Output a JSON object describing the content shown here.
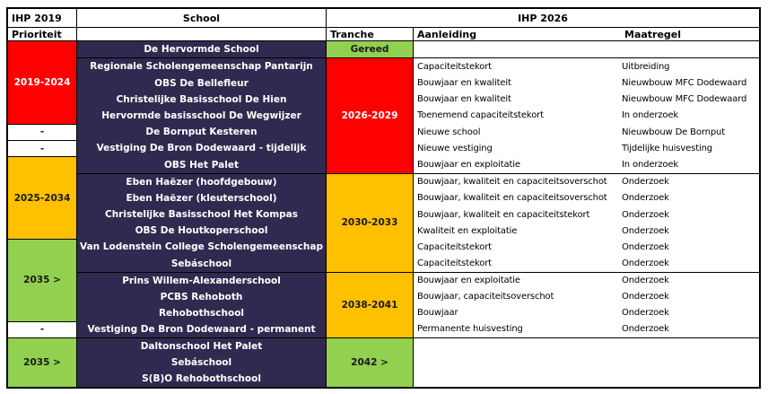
{
  "title": "IHP schoolhuisvesting planningstabel",
  "colors": {
    "red": "#FF0000",
    "orange": "#FFC000",
    "green": "#92D050",
    "navy": "#302A50",
    "white": "#FFFFFF",
    "border": "#000000",
    "text_on_red": "#FFFFFF",
    "text_dark": "#1A1A1A",
    "school_text": "#FFFFFF"
  },
  "header": {
    "ihp2019": "IHP 2019",
    "school": "School",
    "ihp2026": "IHP 2026",
    "prioriteit": "Prioriteit",
    "tranche": "Tranche",
    "aanleiding": "Aanleiding",
    "maatregel": "Maatregel"
  },
  "priority_groups": [
    {
      "label": "2019-2024",
      "rows": 5,
      "color": "red"
    },
    {
      "label": "-",
      "rows": 1,
      "color": "white"
    },
    {
      "label": "-",
      "rows": 1,
      "color": "white"
    },
    {
      "label": "2025-2034",
      "rows": 5,
      "color": "orange"
    },
    {
      "label": "2035 >",
      "rows": 5,
      "color": "green"
    },
    {
      "label": "-",
      "rows": 1,
      "color": "white"
    },
    {
      "label": "2035 >",
      "rows": 3,
      "color": "green"
    }
  ],
  "tranche_groups": [
    {
      "tranche": "Gereed",
      "color": "green",
      "rows": [
        {
          "school": "De Hervormde School",
          "aanleiding": "",
          "maatregel": ""
        }
      ]
    },
    {
      "tranche": "2026-2029",
      "color": "red",
      "rows": [
        {
          "school": "Regionale Scholengemeenschap Pantarijn",
          "aanleiding": "Capaciteitstekort",
          "maatregel": "Uitbreiding"
        },
        {
          "school": "OBS De Bellefleur",
          "aanleiding": "Bouwjaar en kwaliteit",
          "maatregel": "Nieuwbouw MFC Dodewaard"
        },
        {
          "school": "Christelijke Basisschool De Hien",
          "aanleiding": "Bouwjaar en kwaliteit",
          "maatregel": "Nieuwbouw MFC Dodewaard"
        },
        {
          "school": "Hervormde basisschool De Wegwijzer",
          "aanleiding": "Toenemend capaciteitstekort",
          "maatregel": "In onderzoek"
        },
        {
          "school": "De Bornput Kesteren",
          "aanleiding": "Nieuwe school",
          "maatregel": "Nieuwbouw De Bornput"
        },
        {
          "school": "Vestiging De Bron Dodewaard - tijdelijk",
          "aanleiding": "Nieuwe vestiging",
          "maatregel": "Tijdelijke huisvesting"
        },
        {
          "school": "OBS Het Palet",
          "aanleiding": "Bouwjaar en exploitatie",
          "maatregel": "In onderzoek"
        }
      ]
    },
    {
      "tranche": "2030-2033",
      "color": "orange",
      "rows": [
        {
          "school": "Eben Haëzer (hoofdgebouw)",
          "aanleiding": "Bouwjaar, kwaliteit en capaciteitsoverschot",
          "maatregel": "Onderzoek"
        },
        {
          "school": "Eben Haëzer (kleuterschool)",
          "aanleiding": "Bouwjaar, kwaliteit en capaciteitsoverschot",
          "maatregel": "Onderzoek"
        },
        {
          "school": "Christelijke Basisschool Het Kompas",
          "aanleiding": "Bouwjaar, kwaliteit en capaciteitstekort",
          "maatregel": "Onderzoek"
        },
        {
          "school": "OBS De Houtkoperschool",
          "aanleiding": "Kwaliteit en exploitatie",
          "maatregel": "Onderzoek"
        },
        {
          "school": "Van Lodenstein College Scholengemeenschap",
          "aanleiding": "Capaciteitstekort",
          "maatregel": "Onderzoek"
        },
        {
          "school": "Sebáschool",
          "aanleiding": "Capaciteitstekort",
          "maatregel": "Onderzoek"
        }
      ]
    },
    {
      "tranche": "2038-2041",
      "color": "orange",
      "rows": [
        {
          "school": "Prins Willem-Alexanderschool",
          "aanleiding": "Bouwjaar en exploitatie",
          "maatregel": "Onderzoek"
        },
        {
          "school": "PCBS Rehoboth",
          "aanleiding": "Bouwjaar, capaciteitsoverschot",
          "maatregel": "Onderzoek"
        },
        {
          "school": "Rehobothschool",
          "aanleiding": "Bouwjaar",
          "maatregel": "Onderzoek"
        },
        {
          "school": "Vestiging De Bron Dodewaard - permanent",
          "aanleiding": "Permanente huisvesting",
          "maatregel": "Onderzoek"
        }
      ]
    },
    {
      "tranche": "2042 >",
      "color": "green",
      "rows": [
        {
          "school": "Daltonschool Het Palet",
          "aanleiding": "",
          "maatregel": ""
        },
        {
          "school": "Sebáschool",
          "aanleiding": "",
          "maatregel": ""
        },
        {
          "school": "S(B)O Rehobothschool",
          "aanleiding": "",
          "maatregel": ""
        }
      ]
    }
  ]
}
